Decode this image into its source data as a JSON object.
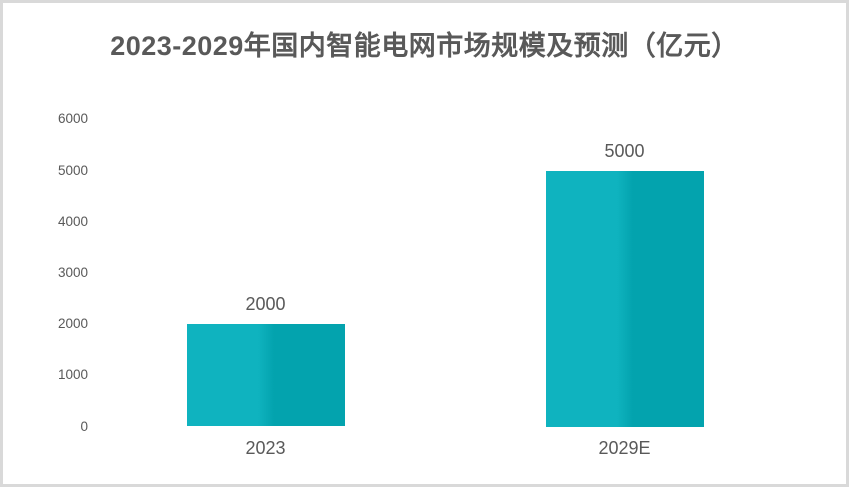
{
  "page": {
    "background_color": "#ffffff",
    "border_color": "#d9d9d9"
  },
  "chart_data": {
    "type": "bar",
    "title": "2023-2029年国内智能电网市场规模及预测（亿元）",
    "categories": [
      "2023",
      "2029E"
    ],
    "values": [
      2000,
      5000
    ],
    "data_labels": [
      "2000",
      "5000"
    ],
    "yticks": [
      0,
      1000,
      2000,
      3000,
      4000,
      5000,
      6000
    ],
    "ylim": [
      0,
      6000
    ],
    "xlabel": "",
    "ylabel": "",
    "grid": false,
    "legend": "none",
    "axis_line": "none",
    "title_color": "#595959",
    "text_color": "#595959",
    "bar_color_left": "#0fb3bf",
    "bar_color_right": "#03a3ae"
  }
}
